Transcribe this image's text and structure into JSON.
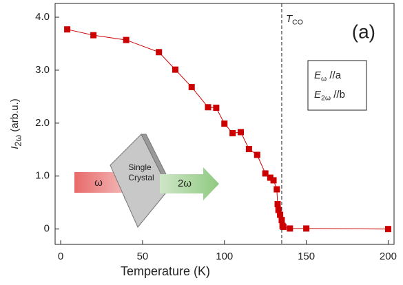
{
  "chart_data": {
    "type": "line",
    "x_label": "Temperature (K)",
    "y_label": {
      "main": "I",
      "sub": "2ω",
      "rest": " (arb.u.)"
    },
    "x": [
      4,
      20,
      40,
      60,
      70,
      80,
      90,
      95,
      100,
      105,
      110,
      115,
      120,
      125,
      128,
      130,
      132,
      132.5,
      133,
      134,
      135,
      135.5,
      136,
      140,
      150,
      200
    ],
    "series": [
      {
        "color": "#cc0000",
        "values": [
          3.77,
          3.66,
          3.57,
          3.34,
          3.01,
          2.68,
          2.3,
          2.29,
          1.99,
          1.81,
          1.83,
          1.51,
          1.4,
          1.05,
          0.97,
          0.92,
          0.75,
          0.47,
          0.36,
          0.27,
          0.17,
          0.06,
          0.04,
          0.01,
          0.01,
          0.0
        ]
      }
    ],
    "xlim": [
      -3.4,
      203.6
    ],
    "ylim": [
      -0.29,
      4.26
    ],
    "xticks": [
      0,
      50,
      100,
      150,
      200
    ],
    "yticks": [
      0,
      {
        "value": 1,
        "label": "1.0"
      },
      {
        "value": 2,
        "label": "2.0"
      },
      {
        "value": 3,
        "label": "3.0"
      },
      {
        "value": 4,
        "label": "4.0"
      }
    ],
    "reference_line": {
      "x": 135,
      "label": {
        "main": "T",
        "sub": "CO"
      }
    },
    "panel_label": "(a)",
    "legend_box": [
      {
        "main": "E",
        "sub": "ω",
        "rest": " //a"
      },
      {
        "main": "E",
        "sub": "2ω",
        "rest": " //b"
      }
    ],
    "inset": {
      "input": "ω",
      "crystal": [
        "Single",
        "Crystal"
      ],
      "output": "2ω"
    }
  }
}
